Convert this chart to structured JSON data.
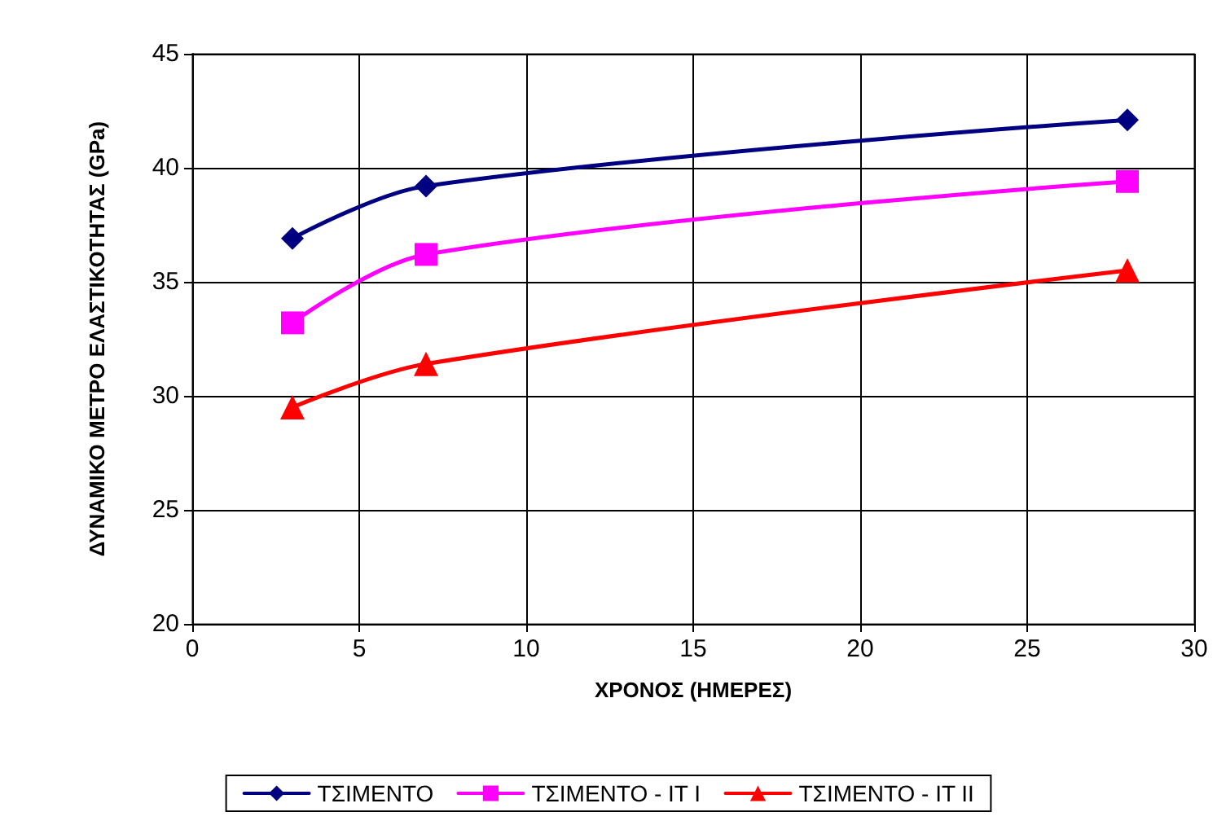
{
  "chart_data": {
    "type": "line",
    "xlabel": "ΧΡΟΝΟΣ (ΗΜΕΡΕΣ)",
    "ylabel": "ΔΥΝΑΜΙΚΟ ΜΕΤΡΟ ΕΛΑΣΤΙΚΟΤΗΤΑΣ (GPa)",
    "x": [
      3,
      7,
      28
    ],
    "series": [
      {
        "name": "ΤΣΙΜΕΝΤΟ",
        "color": "#000080",
        "marker": "diamond",
        "values": [
          36.9,
          39.2,
          42.1
        ]
      },
      {
        "name": "ΤΣΙΜΕΝΤΟ - ΙΤ Ι",
        "color": "#ff00ff",
        "marker": "square",
        "values": [
          33.2,
          36.2,
          39.4
        ]
      },
      {
        "name": "ΤΣΙΜΕΝΤΟ - ΙΤ ΙΙ",
        "color": "#ff0000",
        "marker": "triangle",
        "values": [
          29.5,
          31.4,
          35.5
        ]
      }
    ],
    "xlim": [
      0,
      30
    ],
    "xticks": [
      0,
      5,
      10,
      15,
      20,
      25,
      30
    ],
    "ylim": [
      20,
      45
    ],
    "yticks": [
      20,
      25,
      30,
      35,
      40,
      45
    ],
    "grid": true,
    "legend": "bottom"
  }
}
